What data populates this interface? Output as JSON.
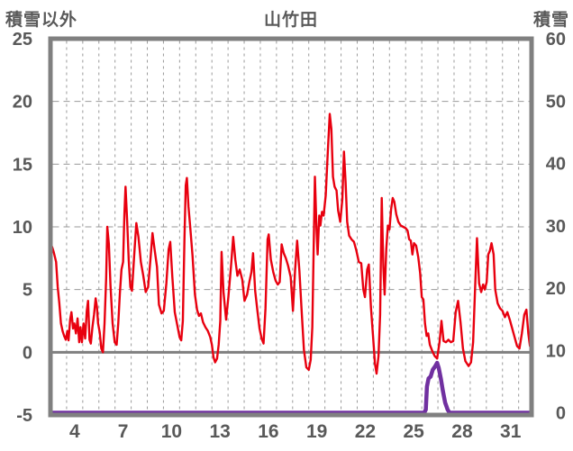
{
  "header": {
    "left_axis_title": "積雪以外",
    "title": "山竹田",
    "right_axis_title": "積雪"
  },
  "colors": {
    "temperature_line": "#e8000f",
    "snow_line": "#7030a0",
    "border": "#808080",
    "zero_line": "#808080",
    "grid": "#9a9a9a",
    "text": "#595959",
    "background": "#ffffff"
  },
  "chart_data": {
    "type": "line",
    "title": "山竹田",
    "left_axis": {
      "title": "積雪以外",
      "ticks": [
        25,
        20,
        15,
        10,
        5,
        0,
        -5
      ],
      "range": [
        -5,
        25
      ]
    },
    "right_axis": {
      "title": "積雪",
      "ticks": [
        60,
        50,
        40,
        30,
        20,
        10,
        0
      ],
      "range": [
        0,
        60
      ]
    },
    "x_axis": {
      "tick_labels": [
        4,
        7,
        10,
        13,
        16,
        19,
        22,
        25,
        28,
        31
      ],
      "day_range": [
        3.0,
        32.8
      ],
      "gridline_days": [
        4,
        5,
        6,
        7,
        8,
        9,
        10,
        11,
        12,
        13,
        14,
        15,
        16,
        17,
        18,
        19,
        20,
        21,
        22,
        23,
        24,
        25,
        26,
        27,
        28,
        29,
        30,
        31,
        32
      ]
    },
    "grid": true,
    "zero_line_value": 0,
    "series": [
      {
        "name": "temperature",
        "axis": "left",
        "points": [
          [
            3.0,
            8.7
          ],
          [
            3.1,
            8.4
          ],
          [
            3.2,
            8.0
          ],
          [
            3.35,
            7.2
          ],
          [
            3.45,
            5.2
          ],
          [
            3.55,
            3.9
          ],
          [
            3.65,
            2.3
          ],
          [
            3.75,
            1.7
          ],
          [
            3.85,
            1.3
          ],
          [
            3.95,
            1.0
          ],
          [
            4.05,
            1.7
          ],
          [
            4.12,
            0.95
          ],
          [
            4.22,
            2.6
          ],
          [
            4.3,
            3.2
          ],
          [
            4.4,
            1.9
          ],
          [
            4.48,
            2.3
          ],
          [
            4.58,
            1.5
          ],
          [
            4.68,
            2.7
          ],
          [
            4.78,
            0.8
          ],
          [
            4.86,
            2.0
          ],
          [
            4.95,
            0.8
          ],
          [
            5.05,
            2.3
          ],
          [
            5.15,
            1.1
          ],
          [
            5.25,
            3.3
          ],
          [
            5.33,
            4.1
          ],
          [
            5.42,
            1.0
          ],
          [
            5.5,
            0.7
          ],
          [
            5.6,
            2.0
          ],
          [
            5.7,
            3.0
          ],
          [
            5.8,
            4.3
          ],
          [
            5.88,
            3.6
          ],
          [
            5.95,
            2.3
          ],
          [
            6.05,
            1.6
          ],
          [
            6.15,
            0.3
          ],
          [
            6.25,
            0.0
          ],
          [
            6.35,
            2.3
          ],
          [
            6.45,
            5.9
          ],
          [
            6.52,
            10.0
          ],
          [
            6.62,
            8.6
          ],
          [
            6.72,
            5.3
          ],
          [
            6.85,
            2.3
          ],
          [
            6.98,
            0.8
          ],
          [
            7.1,
            0.6
          ],
          [
            7.2,
            2.3
          ],
          [
            7.3,
            4.7
          ],
          [
            7.4,
            6.6
          ],
          [
            7.5,
            7.2
          ],
          [
            7.58,
            11.0
          ],
          [
            7.65,
            13.2
          ],
          [
            7.75,
            10.5
          ],
          [
            7.85,
            7.3
          ],
          [
            7.95,
            5.2
          ],
          [
            8.05,
            4.9
          ],
          [
            8.2,
            8.0
          ],
          [
            8.32,
            10.3
          ],
          [
            8.45,
            9.2
          ],
          [
            8.6,
            7.2
          ],
          [
            8.75,
            6.1
          ],
          [
            8.9,
            4.8
          ],
          [
            9.05,
            5.2
          ],
          [
            9.2,
            7.5
          ],
          [
            9.32,
            9.5
          ],
          [
            9.45,
            8.2
          ],
          [
            9.6,
            6.8
          ],
          [
            9.72,
            3.8
          ],
          [
            9.88,
            3.1
          ],
          [
            10.02,
            3.3
          ],
          [
            10.18,
            5.5
          ],
          [
            10.32,
            8.2
          ],
          [
            10.42,
            8.8
          ],
          [
            10.55,
            6.0
          ],
          [
            10.7,
            3.2
          ],
          [
            10.85,
            2.2
          ],
          [
            11.0,
            1.2
          ],
          [
            11.1,
            0.95
          ],
          [
            11.2,
            2.5
          ],
          [
            11.3,
            9.0
          ],
          [
            11.38,
            13.3
          ],
          [
            11.45,
            13.9
          ],
          [
            11.55,
            11.6
          ],
          [
            11.65,
            10.1
          ],
          [
            11.8,
            7.7
          ],
          [
            11.95,
            4.6
          ],
          [
            12.08,
            3.4
          ],
          [
            12.2,
            2.9
          ],
          [
            12.32,
            3.1
          ],
          [
            12.45,
            2.4
          ],
          [
            12.6,
            2.0
          ],
          [
            12.75,
            1.7
          ],
          [
            12.9,
            1.2
          ],
          [
            13.0,
            0.6
          ],
          [
            13.1,
            -0.4
          ],
          [
            13.2,
            -0.8
          ],
          [
            13.32,
            -0.5
          ],
          [
            13.42,
            0.6
          ],
          [
            13.52,
            2.5
          ],
          [
            13.6,
            8.0
          ],
          [
            13.72,
            4.8
          ],
          [
            13.88,
            2.6
          ],
          [
            14.02,
            4.4
          ],
          [
            14.18,
            6.8
          ],
          [
            14.32,
            9.2
          ],
          [
            14.45,
            7.4
          ],
          [
            14.58,
            6.1
          ],
          [
            14.72,
            6.6
          ],
          [
            14.88,
            5.8
          ],
          [
            15.02,
            4.1
          ],
          [
            15.18,
            4.6
          ],
          [
            15.32,
            5.6
          ],
          [
            15.45,
            6.4
          ],
          [
            15.55,
            7.9
          ],
          [
            15.68,
            4.9
          ],
          [
            15.82,
            3.3
          ],
          [
            15.95,
            1.9
          ],
          [
            16.08,
            1.1
          ],
          [
            16.2,
            0.7
          ],
          [
            16.32,
            3.5
          ],
          [
            16.45,
            9.0
          ],
          [
            16.52,
            9.4
          ],
          [
            16.65,
            7.4
          ],
          [
            16.8,
            6.4
          ],
          [
            16.95,
            5.7
          ],
          [
            17.08,
            5.4
          ],
          [
            17.2,
            5.6
          ],
          [
            17.32,
            8.6
          ],
          [
            17.45,
            7.9
          ],
          [
            17.58,
            7.5
          ],
          [
            17.72,
            6.9
          ],
          [
            17.88,
            6.0
          ],
          [
            18.02,
            3.3
          ],
          [
            18.15,
            6.5
          ],
          [
            18.28,
            8.9
          ],
          [
            18.42,
            6.5
          ],
          [
            18.55,
            3.5
          ],
          [
            18.7,
            0.2
          ],
          [
            18.85,
            -1.2
          ],
          [
            19.0,
            -1.4
          ],
          [
            19.12,
            -0.6
          ],
          [
            19.22,
            2.0
          ],
          [
            19.3,
            8.0
          ],
          [
            19.38,
            14.0
          ],
          [
            19.48,
            9.8
          ],
          [
            19.55,
            7.8
          ],
          [
            19.65,
            10.9
          ],
          [
            19.72,
            10.1
          ],
          [
            19.82,
            11.2
          ],
          [
            19.92,
            10.9
          ],
          [
            20.05,
            12.5
          ],
          [
            20.18,
            16.0
          ],
          [
            20.3,
            19.0
          ],
          [
            20.4,
            17.8
          ],
          [
            20.5,
            14.0
          ],
          [
            20.6,
            13.2
          ],
          [
            20.72,
            12.9
          ],
          [
            20.82,
            11.3
          ],
          [
            20.95,
            10.4
          ],
          [
            21.08,
            12.2
          ],
          [
            21.18,
            16.0
          ],
          [
            21.28,
            13.6
          ],
          [
            21.38,
            10.4
          ],
          [
            21.5,
            9.3
          ],
          [
            21.65,
            9.0
          ],
          [
            21.8,
            8.8
          ],
          [
            21.95,
            8.1
          ],
          [
            22.1,
            7.2
          ],
          [
            22.25,
            7.1
          ],
          [
            22.38,
            5.0
          ],
          [
            22.48,
            4.4
          ],
          [
            22.62,
            6.6
          ],
          [
            22.72,
            7.0
          ],
          [
            22.85,
            3.6
          ],
          [
            22.98,
            1.3
          ],
          [
            23.1,
            -0.9
          ],
          [
            23.2,
            -1.7
          ],
          [
            23.32,
            -0.3
          ],
          [
            23.42,
            3.0
          ],
          [
            23.52,
            12.3
          ],
          [
            23.62,
            6.8
          ],
          [
            23.7,
            4.6
          ],
          [
            23.8,
            8.2
          ],
          [
            23.9,
            10.1
          ],
          [
            24.0,
            9.8
          ],
          [
            24.1,
            11.4
          ],
          [
            24.2,
            12.3
          ],
          [
            24.3,
            12.0
          ],
          [
            24.42,
            11.0
          ],
          [
            24.55,
            10.4
          ],
          [
            24.7,
            10.1
          ],
          [
            24.85,
            10.0
          ],
          [
            25.0,
            9.9
          ],
          [
            25.12,
            9.7
          ],
          [
            25.22,
            9.0
          ],
          [
            25.32,
            8.9
          ],
          [
            25.42,
            7.8
          ],
          [
            25.52,
            8.7
          ],
          [
            25.65,
            8.5
          ],
          [
            25.78,
            7.6
          ],
          [
            25.9,
            6.3
          ],
          [
            26.0,
            4.4
          ],
          [
            26.1,
            4.2
          ],
          [
            26.2,
            2.3
          ],
          [
            26.3,
            1.3
          ],
          [
            26.4,
            1.5
          ],
          [
            26.5,
            0.6
          ],
          [
            26.65,
            0.1
          ],
          [
            26.8,
            -0.3
          ],
          [
            26.95,
            -0.5
          ],
          [
            27.1,
            0.8
          ],
          [
            27.22,
            2.5
          ],
          [
            27.35,
            0.9
          ],
          [
            27.5,
            0.8
          ],
          [
            27.65,
            1.0
          ],
          [
            27.8,
            0.8
          ],
          [
            27.95,
            0.9
          ],
          [
            28.1,
            3.2
          ],
          [
            28.25,
            4.1
          ],
          [
            28.4,
            2.4
          ],
          [
            28.55,
            0.3
          ],
          [
            28.7,
            -0.7
          ],
          [
            28.9,
            -1.1
          ],
          [
            29.05,
            -0.8
          ],
          [
            29.18,
            0.8
          ],
          [
            29.3,
            5.0
          ],
          [
            29.42,
            9.1
          ],
          [
            29.55,
            5.5
          ],
          [
            29.68,
            4.8
          ],
          [
            29.8,
            5.4
          ],
          [
            29.9,
            5.0
          ],
          [
            30.02,
            5.6
          ],
          [
            30.12,
            7.8
          ],
          [
            30.22,
            8.1
          ],
          [
            30.32,
            8.7
          ],
          [
            30.45,
            7.8
          ],
          [
            30.55,
            5.0
          ],
          [
            30.7,
            3.9
          ],
          [
            30.85,
            3.5
          ],
          [
            31.0,
            3.3
          ],
          [
            31.15,
            2.8
          ],
          [
            31.3,
            3.2
          ],
          [
            31.45,
            2.6
          ],
          [
            31.6,
            1.9
          ],
          [
            31.75,
            1.2
          ],
          [
            31.9,
            0.5
          ],
          [
            32.05,
            0.3
          ],
          [
            32.2,
            1.5
          ],
          [
            32.35,
            3.0
          ],
          [
            32.48,
            3.4
          ],
          [
            32.6,
            1.5
          ],
          [
            32.7,
            0.5
          ],
          [
            32.8,
            0.3
          ]
        ]
      },
      {
        "name": "snow_depth",
        "axis": "right",
        "points": [
          [
            3.0,
            0
          ],
          [
            26.15,
            0
          ],
          [
            26.25,
            0.5
          ],
          [
            26.32,
            4.2
          ],
          [
            26.42,
            5.5
          ],
          [
            26.55,
            5.8
          ],
          [
            26.68,
            6.9
          ],
          [
            26.82,
            7.4
          ],
          [
            26.95,
            8.0
          ],
          [
            27.05,
            7.2
          ],
          [
            27.18,
            5.5
          ],
          [
            27.3,
            3.6
          ],
          [
            27.45,
            1.6
          ],
          [
            27.6,
            0.5
          ],
          [
            27.72,
            0
          ],
          [
            32.8,
            0
          ]
        ]
      }
    ]
  }
}
